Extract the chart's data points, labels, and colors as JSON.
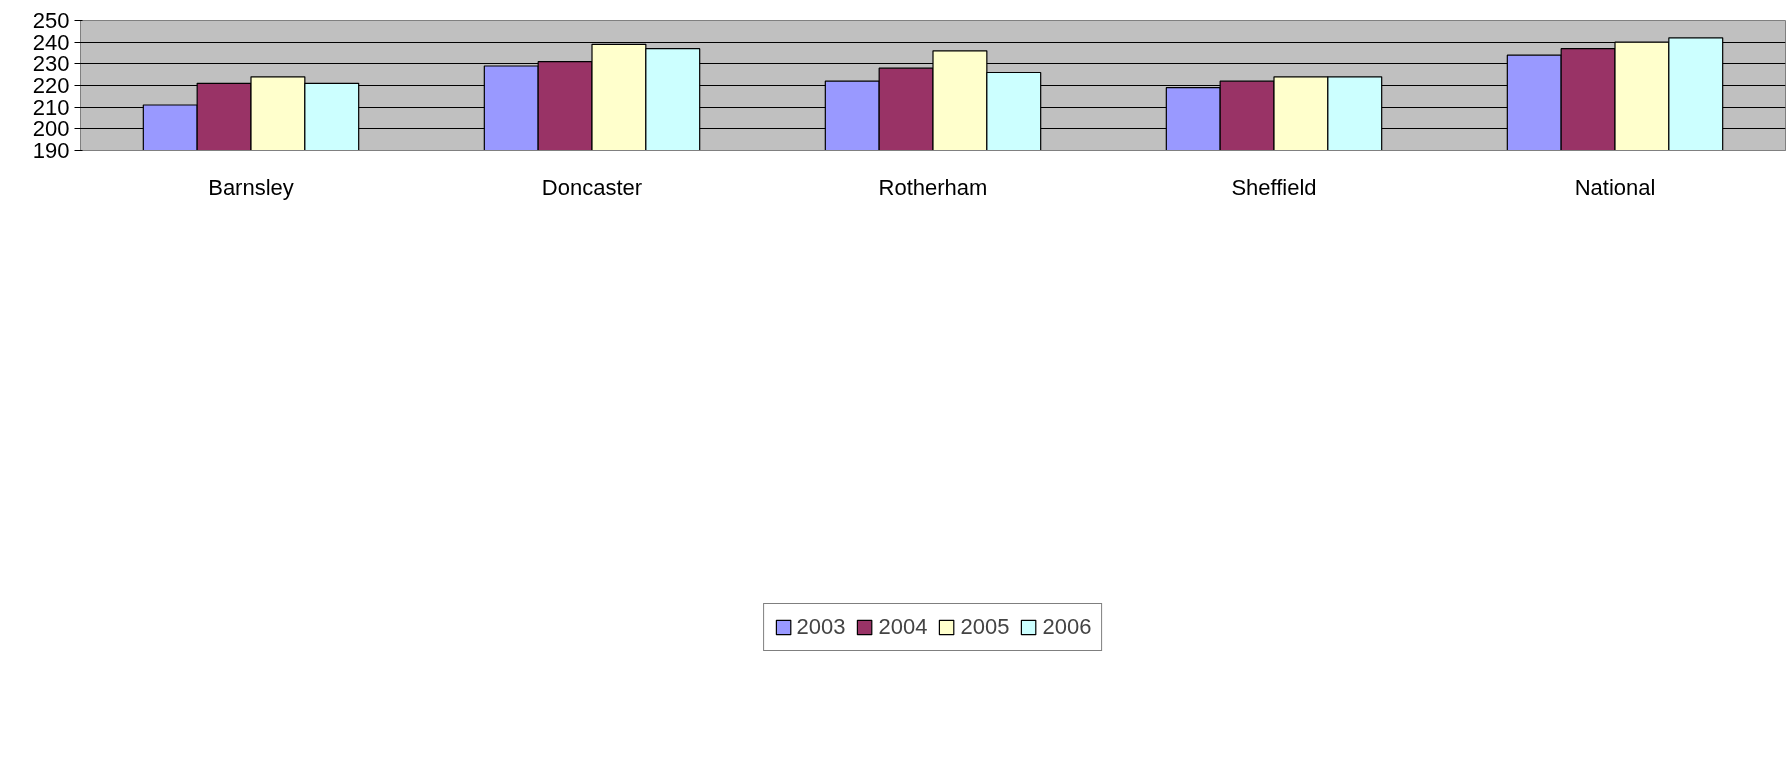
{
  "chart_data": {
    "type": "bar",
    "categories": [
      "Barnsley",
      "Doncaster",
      "Rotherham",
      "Sheffield",
      "National"
    ],
    "series": [
      {
        "name": "2003",
        "color": "#9999ff",
        "values": [
          211,
          229,
          222,
          219,
          234
        ]
      },
      {
        "name": "2004",
        "color": "#993366",
        "values": [
          221,
          231,
          228,
          222,
          237
        ]
      },
      {
        "name": "2005",
        "color": "#ffffcc",
        "values": [
          224,
          239,
          236,
          224,
          240
        ]
      },
      {
        "name": "2006",
        "color": "#ccffff",
        "values": [
          221,
          237,
          226,
          224,
          242
        ]
      }
    ],
    "ylim": [
      190,
      250
    ],
    "yticks": [
      190,
      200,
      210,
      220,
      230,
      240,
      250
    ],
    "grid": "y",
    "legend": "bottom"
  }
}
